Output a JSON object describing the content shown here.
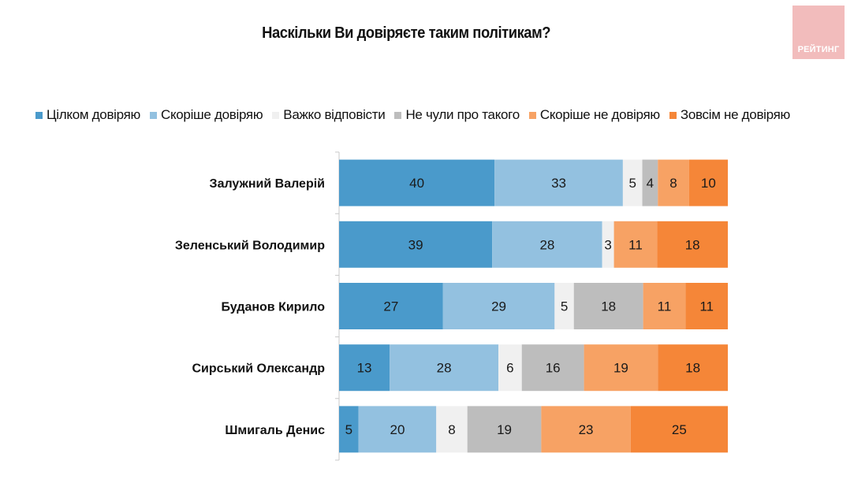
{
  "header": {
    "title": "Наскільки Ви довіряєте таким політикам?",
    "logo_text": "РЕЙТИНГ",
    "logo_color": "#f2bcbc"
  },
  "chart_data": {
    "type": "bar",
    "orientation": "horizontal",
    "stacked": true,
    "normalized": true,
    "title": "Наскільки Ви довіряєте таким політикам?",
    "xlabel": "",
    "ylabel": "",
    "legend_position": "top",
    "grid": false,
    "categories": [
      "Залужний Валерій",
      "Зеленський Володимир",
      "Буданов Кирило",
      "Сирський Олександр",
      "Шмигаль Денис"
    ],
    "series": [
      {
        "name": "Цілком довіряю",
        "color": "#4a9acb",
        "values": [
          40,
          39,
          27,
          13,
          5
        ]
      },
      {
        "name": "Скоріше довіряю",
        "color": "#93c1e0",
        "values": [
          33,
          28,
          29,
          28,
          20
        ]
      },
      {
        "name": "Важко відповісти",
        "color": "#f0f0f0",
        "values": [
          5,
          3,
          5,
          6,
          8
        ]
      },
      {
        "name": "Не чули про такого",
        "color": "#bdbdbd",
        "values": [
          4,
          0,
          18,
          16,
          19
        ]
      },
      {
        "name": "Скоріше не довіряю",
        "color": "#f7a264",
        "values": [
          8,
          11,
          11,
          19,
          23
        ]
      },
      {
        "name": "Зовсім не довіряю",
        "color": "#f58638",
        "values": [
          10,
          18,
          11,
          18,
          25
        ]
      }
    ]
  }
}
